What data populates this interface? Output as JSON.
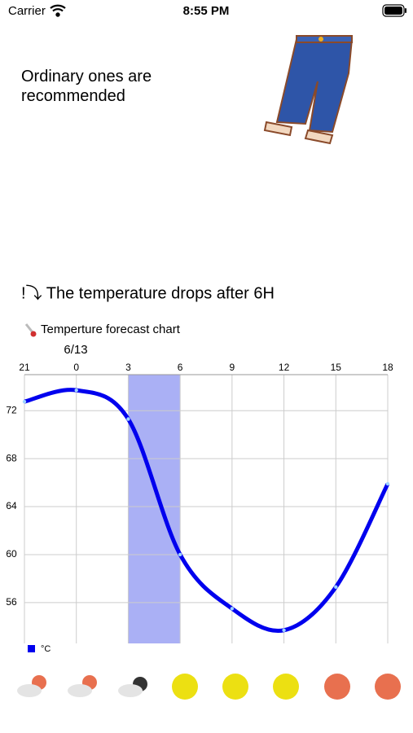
{
  "status_bar": {
    "carrier": "Carrier",
    "time": "8:55 PM"
  },
  "recommendation": "Ordinary ones are recommended",
  "alert": "!⤵ The temperature drops after 6H",
  "chart_heading": "Temperture forecast chart",
  "chart_data": {
    "type": "line",
    "date_label": "6/13",
    "categories": [
      "21",
      "0",
      "3",
      "6",
      "9",
      "12",
      "15",
      "18"
    ],
    "series": [
      {
        "name": "°C",
        "color": "#0000ee",
        "values": [
          72.75,
          73.7,
          71.3,
          60.0,
          55.5,
          53.7,
          57.3,
          65.9
        ]
      }
    ],
    "ylim": [
      52.6,
      75
    ],
    "yticks": [
      56,
      60,
      64,
      68,
      72
    ],
    "grid": true,
    "highlight": {
      "from": 2,
      "to": 3,
      "color": "#aab0f5"
    },
    "legend": "bottom-left"
  }
}
